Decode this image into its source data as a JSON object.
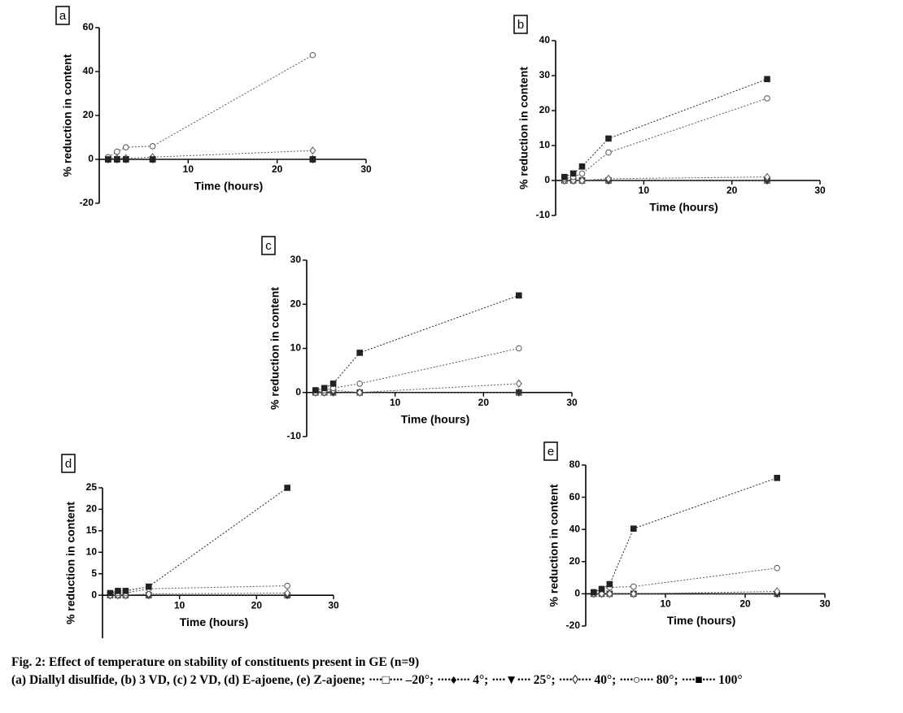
{
  "chart_data": [
    {
      "type": "line",
      "label": "a",
      "xlabel": "Time (hours)",
      "ylabel": "% reduction in content",
      "x": [
        1,
        2,
        3,
        6,
        24
      ],
      "xlim": [
        0,
        30
      ],
      "xticks": [
        10,
        20,
        30
      ],
      "ylim": [
        -20,
        60
      ],
      "yticks": [
        -20,
        0,
        20,
        40,
        60
      ],
      "series": [
        {
          "marker": "square-open",
          "color": "#333333",
          "values": [
            0,
            0,
            0,
            0,
            0
          ]
        },
        {
          "marker": "diamond-filled",
          "color": "#333333",
          "values": [
            0,
            0,
            0,
            0,
            0
          ]
        },
        {
          "marker": "triangle-filled",
          "color": "#333333",
          "values": [
            0,
            0,
            0,
            0,
            0
          ]
        },
        {
          "marker": "diamond-open",
          "color": "#555555",
          "values": [
            0.5,
            0.5,
            0.5,
            1,
            4
          ]
        },
        {
          "marker": "circle-open",
          "color": "#555555",
          "values": [
            1,
            3.5,
            5.5,
            6,
            47.5
          ]
        },
        {
          "marker": "square-filled",
          "color": "#222222",
          "values": [
            0,
            0,
            0,
            0,
            0
          ]
        }
      ]
    },
    {
      "type": "line",
      "label": "b",
      "xlabel": "Time (hours)",
      "ylabel": "% reduction in content",
      "x": [
        1,
        2,
        3,
        6,
        24
      ],
      "xlim": [
        0,
        30
      ],
      "xticks": [
        10,
        20,
        30
      ],
      "ylim": [
        -10,
        40
      ],
      "yticks": [
        -10,
        0,
        10,
        20,
        30,
        40
      ],
      "series": [
        {
          "marker": "square-open",
          "color": "#333333",
          "values": [
            0,
            0,
            0,
            0,
            0
          ]
        },
        {
          "marker": "diamond-filled",
          "color": "#333333",
          "values": [
            0,
            0,
            0,
            0,
            0
          ]
        },
        {
          "marker": "triangle-filled",
          "color": "#333333",
          "values": [
            0,
            0,
            0,
            0,
            0
          ]
        },
        {
          "marker": "diamond-open",
          "color": "#555555",
          "values": [
            0,
            0,
            0,
            0.5,
            1
          ]
        },
        {
          "marker": "circle-open",
          "color": "#555555",
          "values": [
            0.5,
            1,
            2,
            8,
            23.5
          ]
        },
        {
          "marker": "square-filled",
          "color": "#222222",
          "values": [
            1,
            2,
            4,
            12,
            29
          ]
        }
      ]
    },
    {
      "type": "line",
      "label": "c",
      "xlabel": "Time (hours)",
      "ylabel": "% reduction in content",
      "x": [
        1,
        2,
        3,
        6,
        24
      ],
      "xlim": [
        0,
        30
      ],
      "xticks": [
        10,
        20,
        30
      ],
      "ylim": [
        -10,
        30
      ],
      "yticks": [
        -10,
        0,
        10,
        20,
        30
      ],
      "series": [
        {
          "marker": "square-open",
          "color": "#333333",
          "values": [
            0,
            0,
            0,
            0,
            0
          ]
        },
        {
          "marker": "diamond-filled",
          "color": "#333333",
          "values": [
            0,
            0,
            0,
            0,
            0
          ]
        },
        {
          "marker": "triangle-filled",
          "color": "#333333",
          "values": [
            0,
            0,
            0,
            0,
            0
          ]
        },
        {
          "marker": "diamond-open",
          "color": "#555555",
          "values": [
            0,
            0,
            0.5,
            0,
            2
          ]
        },
        {
          "marker": "circle-open",
          "color": "#555555",
          "values": [
            0,
            0.5,
            1,
            2,
            10
          ]
        },
        {
          "marker": "square-filled",
          "color": "#222222",
          "values": [
            0.5,
            1,
            2,
            9,
            22
          ]
        }
      ]
    },
    {
      "type": "line",
      "label": "d",
      "xlabel": "Time (hours)",
      "ylabel": "% reduction in content",
      "x": [
        1,
        2,
        3,
        6,
        24
      ],
      "xlim": [
        0,
        30
      ],
      "xticks": [
        10,
        20,
        30
      ],
      "ylim": [
        -10,
        25
      ],
      "yticks": [
        0,
        5,
        10,
        15,
        20,
        25
      ],
      "series": [
        {
          "marker": "square-open",
          "color": "#333333",
          "values": [
            0,
            0,
            0,
            0,
            0
          ]
        },
        {
          "marker": "diamond-filled",
          "color": "#333333",
          "values": [
            0,
            0,
            0,
            0,
            0
          ]
        },
        {
          "marker": "triangle-filled",
          "color": "#333333",
          "values": [
            0,
            0,
            0,
            0,
            0
          ]
        },
        {
          "marker": "diamond-open",
          "color": "#555555",
          "values": [
            0,
            0,
            0,
            0.3,
            0.5
          ]
        },
        {
          "marker": "circle-open",
          "color": "#555555",
          "values": [
            0,
            0.5,
            0.5,
            1.5,
            2.2
          ]
        },
        {
          "marker": "square-filled",
          "color": "#222222",
          "values": [
            0.5,
            1,
            1,
            2,
            25
          ]
        }
      ]
    },
    {
      "type": "line",
      "label": "e",
      "xlabel": "Time (hours)",
      "ylabel": "% reduction in content",
      "x": [
        1,
        2,
        3,
        6,
        24
      ],
      "xlim": [
        0,
        30
      ],
      "xticks": [
        10,
        20,
        30
      ],
      "ylim": [
        -20,
        80
      ],
      "yticks": [
        -20,
        0,
        20,
        40,
        60,
        80
      ],
      "series": [
        {
          "marker": "square-open",
          "color": "#333333",
          "values": [
            0,
            0,
            0,
            0,
            0
          ]
        },
        {
          "marker": "diamond-filled",
          "color": "#333333",
          "values": [
            0,
            0,
            0,
            0,
            0
          ]
        },
        {
          "marker": "triangle-filled",
          "color": "#333333",
          "values": [
            0,
            0,
            0,
            0,
            0
          ]
        },
        {
          "marker": "diamond-open",
          "color": "#555555",
          "values": [
            0,
            0,
            0,
            0,
            1.5
          ]
        },
        {
          "marker": "circle-open",
          "color": "#555555",
          "values": [
            1,
            3,
            4,
            4.5,
            16
          ]
        },
        {
          "marker": "square-filled",
          "color": "#222222",
          "values": [
            1,
            3,
            6,
            40.5,
            72
          ]
        }
      ]
    }
  ],
  "caption": {
    "title": "Fig. 2: Effect of temperature on stability of constituents present in GE (n=9)",
    "description": "(a) Diallyl disulfide, (b) 3 VD, (c) 2 VD, (d) E-ajoene, (e) Z-ajoene;",
    "legend": [
      {
        "symbol": "····□····",
        "label": "–20°;"
      },
      {
        "symbol": "····♦····",
        "label": "4°;"
      },
      {
        "symbol": "····▼····",
        "label": "25°;"
      },
      {
        "symbol": "····◊····",
        "label": "40°;"
      },
      {
        "symbol": "····○····",
        "label": "80°;"
      },
      {
        "symbol": "····■····",
        "label": "100°"
      }
    ]
  }
}
